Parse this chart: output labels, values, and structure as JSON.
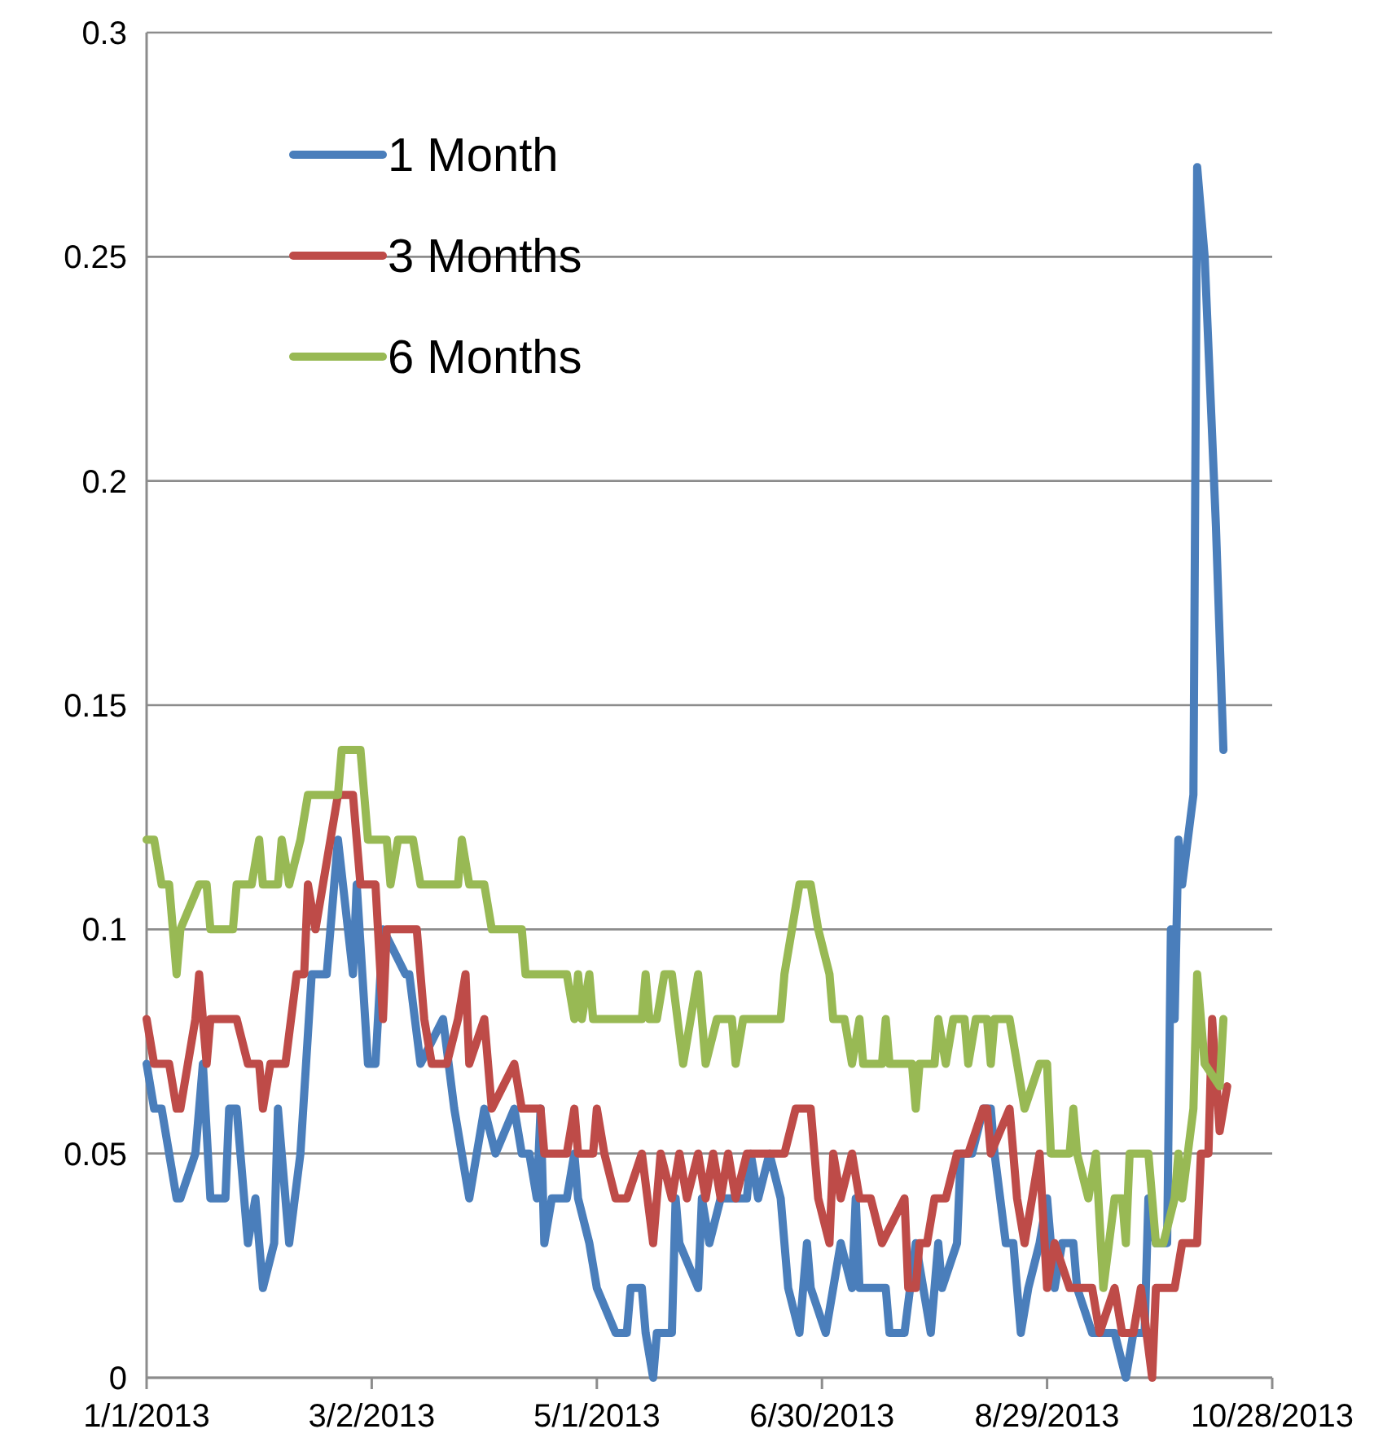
{
  "chart_data": {
    "type": "line",
    "xlim": [
      "2013-01-01",
      "2013-10-28"
    ],
    "xticks": [
      {
        "value": "2013-01-01",
        "label": "1/1/2013"
      },
      {
        "value": "2013-03-02",
        "label": "3/2/2013"
      },
      {
        "value": "2013-05-01",
        "label": "5/1/2013"
      },
      {
        "value": "2013-06-30",
        "label": "6/30/2013"
      },
      {
        "value": "2013-08-29",
        "label": "8/29/2013"
      },
      {
        "value": "2013-10-28",
        "label": "10/28/2013"
      }
    ],
    "ylim": [
      0,
      0.3
    ],
    "yticks": [
      0,
      0.05,
      0.1,
      0.15,
      0.2,
      0.25,
      0.3
    ],
    "grid": "y",
    "legend": "top left",
    "marker": "none",
    "line_style": "solid",
    "series": [
      {
        "name": "1 Month",
        "color": "#4a7ebb",
        "x": [
          "2013-01-01",
          "2013-01-03",
          "2013-01-05",
          "2013-01-07",
          "2013-01-09",
          "2013-01-10",
          "2013-01-14",
          "2013-01-16",
          "2013-01-18",
          "2013-01-22",
          "2013-01-23",
          "2013-01-25",
          "2013-01-28",
          "2013-01-30",
          "2013-02-01",
          "2013-02-04",
          "2013-02-05",
          "2013-02-08",
          "2013-02-11",
          "2013-02-14",
          "2013-02-18",
          "2013-02-21",
          "2013-02-25",
          "2013-02-26",
          "2013-03-01",
          "2013-03-03",
          "2013-03-05",
          "2013-03-11",
          "2013-03-12",
          "2013-03-15",
          "2013-03-21",
          "2013-03-24",
          "2013-03-28",
          "2013-04-01",
          "2013-04-04",
          "2013-04-09",
          "2013-04-11",
          "2013-04-13",
          "2013-04-15",
          "2013-04-16",
          "2013-04-17",
          "2013-04-19",
          "2013-04-23",
          "2013-04-25",
          "2013-04-26",
          "2013-04-29",
          "2013-05-01",
          "2013-05-06",
          "2013-05-09",
          "2013-05-10",
          "2013-05-13",
          "2013-05-14",
          "2013-05-16",
          "2013-05-17",
          "2013-05-21",
          "2013-05-22",
          "2013-05-23",
          "2013-05-28",
          "2013-05-29",
          "2013-05-31",
          "2013-06-03",
          "2013-06-10",
          "2013-06-11",
          "2013-06-13",
          "2013-06-16",
          "2013-06-19",
          "2013-06-21",
          "2013-06-24",
          "2013-06-26",
          "2013-06-27",
          "2013-07-01",
          "2013-07-05",
          "2013-07-08",
          "2013-07-09",
          "2013-07-10",
          "2013-07-17",
          "2013-07-18",
          "2013-07-22",
          "2013-07-25",
          "2013-07-29",
          "2013-07-31",
          "2013-08-01",
          "2013-08-05",
          "2013-08-06",
          "2013-08-09",
          "2013-08-12",
          "2013-08-14",
          "2013-08-15",
          "2013-08-18",
          "2013-08-20",
          "2013-08-22",
          "2013-08-24",
          "2013-08-27",
          "2013-08-29",
          "2013-08-31",
          "2013-09-02",
          "2013-09-05",
          "2013-09-06",
          "2013-09-10",
          "2013-09-16",
          "2013-09-19",
          "2013-09-21",
          "2013-09-24",
          "2013-09-25",
          "2013-09-27",
          "2013-09-30",
          "2013-10-01",
          "2013-10-02",
          "2013-10-03",
          "2013-10-04",
          "2013-10-07",
          "2013-10-08",
          "2013-10-10",
          "2013-10-13",
          "2013-10-15"
        ],
        "values": [
          0.07,
          0.06,
          0.06,
          0.05,
          0.04,
          0.04,
          0.05,
          0.07,
          0.04,
          0.04,
          0.06,
          0.06,
          0.03,
          0.04,
          0.02,
          0.03,
          0.06,
          0.03,
          0.05,
          0.09,
          0.09,
          0.12,
          0.09,
          0.11,
          0.07,
          0.07,
          0.1,
          0.09,
          0.09,
          0.07,
          0.08,
          0.06,
          0.04,
          0.06,
          0.05,
          0.06,
          0.05,
          0.05,
          0.04,
          0.06,
          0.03,
          0.04,
          0.04,
          0.05,
          0.04,
          0.03,
          0.02,
          0.01,
          0.01,
          0.02,
          0.02,
          0.01,
          0,
          0.01,
          0.01,
          0.04,
          0.03,
          0.02,
          0.04,
          0.03,
          0.04,
          0.04,
          0.05,
          0.04,
          0.05,
          0.04,
          0.02,
          0.01,
          0.03,
          0.02,
          0.01,
          0.03,
          0.02,
          0.04,
          0.02,
          0.02,
          0.01,
          0.01,
          0.03,
          0.01,
          0.03,
          0.02,
          0.03,
          0.05,
          0.05,
          0.06,
          0.06,
          0.05,
          0.03,
          0.03,
          0.01,
          0.02,
          0.03,
          0.04,
          0.02,
          0.03,
          0.03,
          0.02,
          0.01,
          0.01,
          0,
          0.01,
          0.01,
          0.04,
          0.03,
          0.03,
          0.1,
          0.08,
          0.12,
          0.11,
          0.13,
          0.27,
          0.25,
          0.19,
          0.14
        ]
      },
      {
        "name": "3 Months",
        "color": "#be4b48",
        "x": [
          "2013-01-01",
          "2013-01-03",
          "2013-01-07",
          "2013-01-09",
          "2013-01-10",
          "2013-01-12",
          "2013-01-14",
          "2013-01-15",
          "2013-01-17",
          "2013-01-18",
          "2013-01-25",
          "2013-01-28",
          "2013-01-31",
          "2013-02-01",
          "2013-02-03",
          "2013-02-07",
          "2013-02-10",
          "2013-02-12",
          "2013-02-13",
          "2013-02-15",
          "2013-02-17",
          "2013-02-19",
          "2013-02-21",
          "2013-02-23",
          "2013-02-25",
          "2013-02-26",
          "2013-02-27",
          "2013-03-03",
          "2013-03-05",
          "2013-03-06",
          "2013-03-14",
          "2013-03-16",
          "2013-03-18",
          "2013-03-22",
          "2013-03-25",
          "2013-03-27",
          "2013-03-28",
          "2013-04-01",
          "2013-04-03",
          "2013-04-09",
          "2013-04-11",
          "2013-04-16",
          "2013-04-17",
          "2013-04-23",
          "2013-04-25",
          "2013-04-26",
          "2013-04-30",
          "2013-05-01",
          "2013-05-03",
          "2013-05-06",
          "2013-05-09",
          "2013-05-13",
          "2013-05-16",
          "2013-05-18",
          "2013-05-21",
          "2013-05-23",
          "2013-05-25",
          "2013-05-28",
          "2013-05-30",
          "2013-06-01",
          "2013-06-03",
          "2013-06-05",
          "2013-06-07",
          "2013-06-10",
          "2013-06-20",
          "2013-06-23",
          "2013-06-27",
          "2013-06-29",
          "2013-07-02",
          "2013-07-03",
          "2013-07-05",
          "2013-07-08",
          "2013-07-10",
          "2013-07-13",
          "2013-07-16",
          "2013-07-22",
          "2013-07-23",
          "2013-07-25",
          "2013-07-26",
          "2013-07-28",
          "2013-07-30",
          "2013-08-02",
          "2013-08-05",
          "2013-08-08",
          "2013-08-12",
          "2013-08-13",
          "2013-08-14",
          "2013-08-19",
          "2013-08-21",
          "2013-08-23",
          "2013-08-27",
          "2013-08-29",
          "2013-08-31",
          "2013-09-04",
          "2013-09-10",
          "2013-09-12",
          "2013-09-16",
          "2013-09-18",
          "2013-09-21",
          "2013-09-23",
          "2013-09-26",
          "2013-09-27",
          "2013-10-02",
          "2013-10-04",
          "2013-10-08",
          "2013-10-09",
          "2013-10-11",
          "2013-10-12",
          "2013-10-14",
          "2013-10-16"
        ],
        "values": [
          0.08,
          0.07,
          0.07,
          0.06,
          0.06,
          0.07,
          0.08,
          0.09,
          0.07,
          0.08,
          0.08,
          0.07,
          0.07,
          0.06,
          0.07,
          0.07,
          0.09,
          0.09,
          0.11,
          0.1,
          0.11,
          0.12,
          0.13,
          0.13,
          0.13,
          0.12,
          0.11,
          0.11,
          0.08,
          0.1,
          0.1,
          0.08,
          0.07,
          0.07,
          0.08,
          0.09,
          0.07,
          0.08,
          0.06,
          0.07,
          0.06,
          0.06,
          0.05,
          0.05,
          0.06,
          0.05,
          0.05,
          0.06,
          0.05,
          0.04,
          0.04,
          0.05,
          0.03,
          0.05,
          0.04,
          0.05,
          0.04,
          0.05,
          0.04,
          0.05,
          0.04,
          0.05,
          0.04,
          0.05,
          0.05,
          0.06,
          0.06,
          0.04,
          0.03,
          0.05,
          0.04,
          0.05,
          0.04,
          0.04,
          0.03,
          0.04,
          0.02,
          0.02,
          0.03,
          0.03,
          0.04,
          0.04,
          0.05,
          0.05,
          0.06,
          0.06,
          0.05,
          0.06,
          0.04,
          0.03,
          0.05,
          0.02,
          0.03,
          0.02,
          0.02,
          0.01,
          0.02,
          0.01,
          0.01,
          0.02,
          0,
          0.02,
          0.02,
          0.03,
          0.03,
          0.05,
          0.05,
          0.08,
          0.055,
          0.065
        ]
      },
      {
        "name": "6 Months",
        "color": "#98b954",
        "x": [
          "2013-01-01",
          "2013-01-03",
          "2013-01-05",
          "2013-01-07",
          "2013-01-09",
          "2013-01-10",
          "2013-01-15",
          "2013-01-17",
          "2013-01-18",
          "2013-01-24",
          "2013-01-25",
          "2013-01-29",
          "2013-01-31",
          "2013-02-01",
          "2013-02-05",
          "2013-02-06",
          "2013-02-08",
          "2013-02-11",
          "2013-02-13",
          "2013-02-21",
          "2013-02-22",
          "2013-02-27",
          "2013-02-28",
          "2013-03-01",
          "2013-03-06",
          "2013-03-07",
          "2013-03-09",
          "2013-03-13",
          "2013-03-15",
          "2013-03-25",
          "2013-03-26",
          "2013-03-28",
          "2013-04-01",
          "2013-04-03",
          "2013-04-11",
          "2013-04-12",
          "2013-04-23",
          "2013-04-25",
          "2013-04-26",
          "2013-04-27",
          "2013-04-29",
          "2013-04-30",
          "2013-05-13",
          "2013-05-14",
          "2013-05-15",
          "2013-05-17",
          "2013-05-19",
          "2013-05-21",
          "2013-05-24",
          "2013-05-28",
          "2013-05-30",
          "2013-06-02",
          "2013-06-06",
          "2013-06-07",
          "2013-06-09",
          "2013-06-19",
          "2013-06-20",
          "2013-06-24",
          "2013-06-27",
          "2013-06-29",
          "2013-07-02",
          "2013-07-03",
          "2013-07-06",
          "2013-07-08",
          "2013-07-10",
          "2013-07-11",
          "2013-07-16",
          "2013-07-17",
          "2013-07-18",
          "2013-07-24",
          "2013-07-25",
          "2013-07-26",
          "2013-07-30",
          "2013-07-31",
          "2013-08-02",
          "2013-08-04",
          "2013-08-07",
          "2013-08-08",
          "2013-08-10",
          "2013-08-13",
          "2013-08-14",
          "2013-08-15",
          "2013-08-19",
          "2013-08-21",
          "2013-08-23",
          "2013-08-27",
          "2013-08-29",
          "2013-08-30",
          "2013-09-04",
          "2013-09-05",
          "2013-09-06",
          "2013-09-09",
          "2013-09-11",
          "2013-09-13",
          "2013-09-16",
          "2013-09-18",
          "2013-09-19",
          "2013-09-20",
          "2013-09-25",
          "2013-09-27",
          "2013-09-29",
          "2013-10-02",
          "2013-10-03",
          "2013-10-04",
          "2013-10-07",
          "2013-10-08",
          "2013-10-10",
          "2013-10-14",
          "2013-10-15"
        ],
        "values": [
          0.12,
          0.12,
          0.11,
          0.11,
          0.09,
          0.1,
          0.11,
          0.11,
          0.1,
          0.1,
          0.11,
          0.11,
          0.12,
          0.11,
          0.11,
          0.12,
          0.11,
          0.12,
          0.13,
          0.13,
          0.14,
          0.14,
          0.13,
          0.12,
          0.12,
          0.11,
          0.12,
          0.12,
          0.11,
          0.11,
          0.12,
          0.11,
          0.11,
          0.1,
          0.1,
          0.09,
          0.09,
          0.08,
          0.09,
          0.08,
          0.09,
          0.08,
          0.08,
          0.09,
          0.08,
          0.08,
          0.09,
          0.09,
          0.07,
          0.09,
          0.07,
          0.08,
          0.08,
          0.07,
          0.08,
          0.08,
          0.09,
          0.11,
          0.11,
          0.1,
          0.09,
          0.08,
          0.08,
          0.07,
          0.08,
          0.07,
          0.07,
          0.08,
          0.07,
          0.07,
          0.06,
          0.07,
          0.07,
          0.08,
          0.07,
          0.08,
          0.08,
          0.07,
          0.08,
          0.08,
          0.07,
          0.08,
          0.08,
          0.07,
          0.06,
          0.07,
          0.07,
          0.05,
          0.05,
          0.06,
          0.05,
          0.04,
          0.05,
          0.02,
          0.04,
          0.04,
          0.03,
          0.05,
          0.05,
          0.03,
          0.03,
          0.04,
          0.05,
          0.04,
          0.06,
          0.09,
          0.07,
          0.065,
          0.08
        ]
      }
    ]
  }
}
